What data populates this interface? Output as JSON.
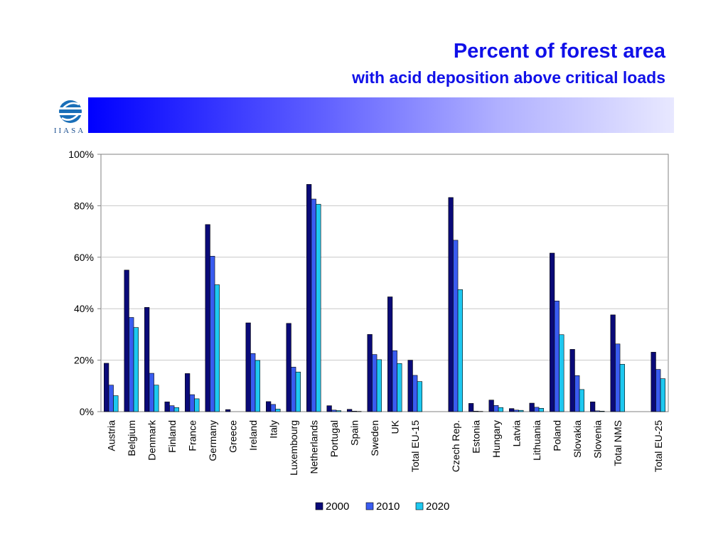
{
  "header": {
    "title": "Percent of forest area",
    "subtitle": "with acid deposition above critical loads",
    "logo_text": "IIASA"
  },
  "colors": {
    "title": "#1010e8",
    "series": [
      "#0a0a78",
      "#3a5cf0",
      "#1ec8f0"
    ]
  },
  "chart_data": {
    "type": "bar",
    "title": "Percent of forest area",
    "subtitle": "with acid deposition above critical loads",
    "categories": [
      "Austria",
      "Belgium",
      "Denmark",
      "Finland",
      "France",
      "Germany",
      "Greece",
      "Ireland",
      "Italy",
      "Luxembourg",
      "Netherlands",
      "Portugal",
      "Spain",
      "Sweden",
      "UK",
      "Total EU-15",
      "",
      "Czech Rep.",
      "Estonia",
      "Hungary",
      "Latvia",
      "Lithuania",
      "Poland",
      "Slovakia",
      "Slovenia",
      "Total NMS",
      "",
      "Total EU-25"
    ],
    "series": [
      {
        "name": "2000",
        "values": [
          18.8,
          55,
          40.5,
          3.8,
          14.8,
          72.7,
          0.8,
          34.5,
          3.9,
          34.3,
          88.3,
          2.3,
          0.9,
          30,
          44.6,
          20,
          null,
          83.2,
          3.2,
          4.5,
          1.2,
          3.3,
          61.6,
          24.2,
          3.8,
          37.6,
          null,
          23.1
        ]
      },
      {
        "name": "2010",
        "values": [
          10.3,
          36.6,
          14.9,
          2.3,
          6.6,
          60.4,
          0,
          22.6,
          2.8,
          17.3,
          82.6,
          0.6,
          0.2,
          22.2,
          23.7,
          14.1,
          null,
          66.6,
          0.2,
          2.4,
          0.6,
          1.7,
          43,
          14,
          0.3,
          26.3,
          null,
          16.4
        ]
      },
      {
        "name": "2020",
        "values": [
          6.2,
          32.7,
          10.3,
          1.6,
          5,
          49.3,
          0,
          19.9,
          1,
          15.4,
          80.6,
          0.4,
          0.1,
          20.2,
          18.7,
          11.7,
          null,
          47.4,
          0.1,
          1.6,
          0.5,
          1.3,
          29.9,
          8.6,
          0.2,
          18.4,
          null,
          12.8
        ]
      }
    ],
    "y_tick_labels": [
      "0%",
      "20%",
      "40%",
      "60%",
      "80%",
      "100%"
    ],
    "ylim": [
      0,
      100
    ],
    "grid": true,
    "legend": "bottom"
  }
}
